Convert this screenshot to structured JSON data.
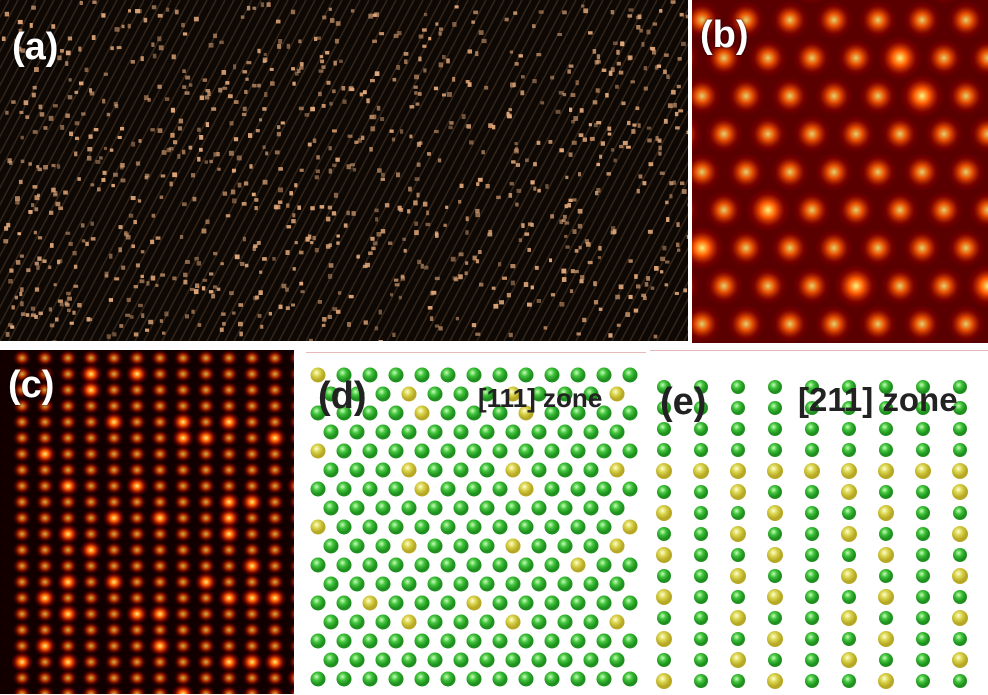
{
  "figure": {
    "panels": [
      {
        "id": "a",
        "label": "(a)"
      },
      {
        "id": "b",
        "label": "(b)"
      },
      {
        "id": "c",
        "label": "(c)"
      },
      {
        "id": "d",
        "label": "(d)",
        "zone": "[111] zone"
      },
      {
        "id": "e",
        "label": "(e)",
        "zone": "[211] zone"
      }
    ]
  },
  "colors": {
    "atom_green": "#3fc23a",
    "atom_yellow": "#d8d24a",
    "stem_bright": "#fff27a",
    "stem_mid": "#ff5a00",
    "stem_dark": "#8a0000",
    "haadf_tint": "#e0a77a"
  }
}
